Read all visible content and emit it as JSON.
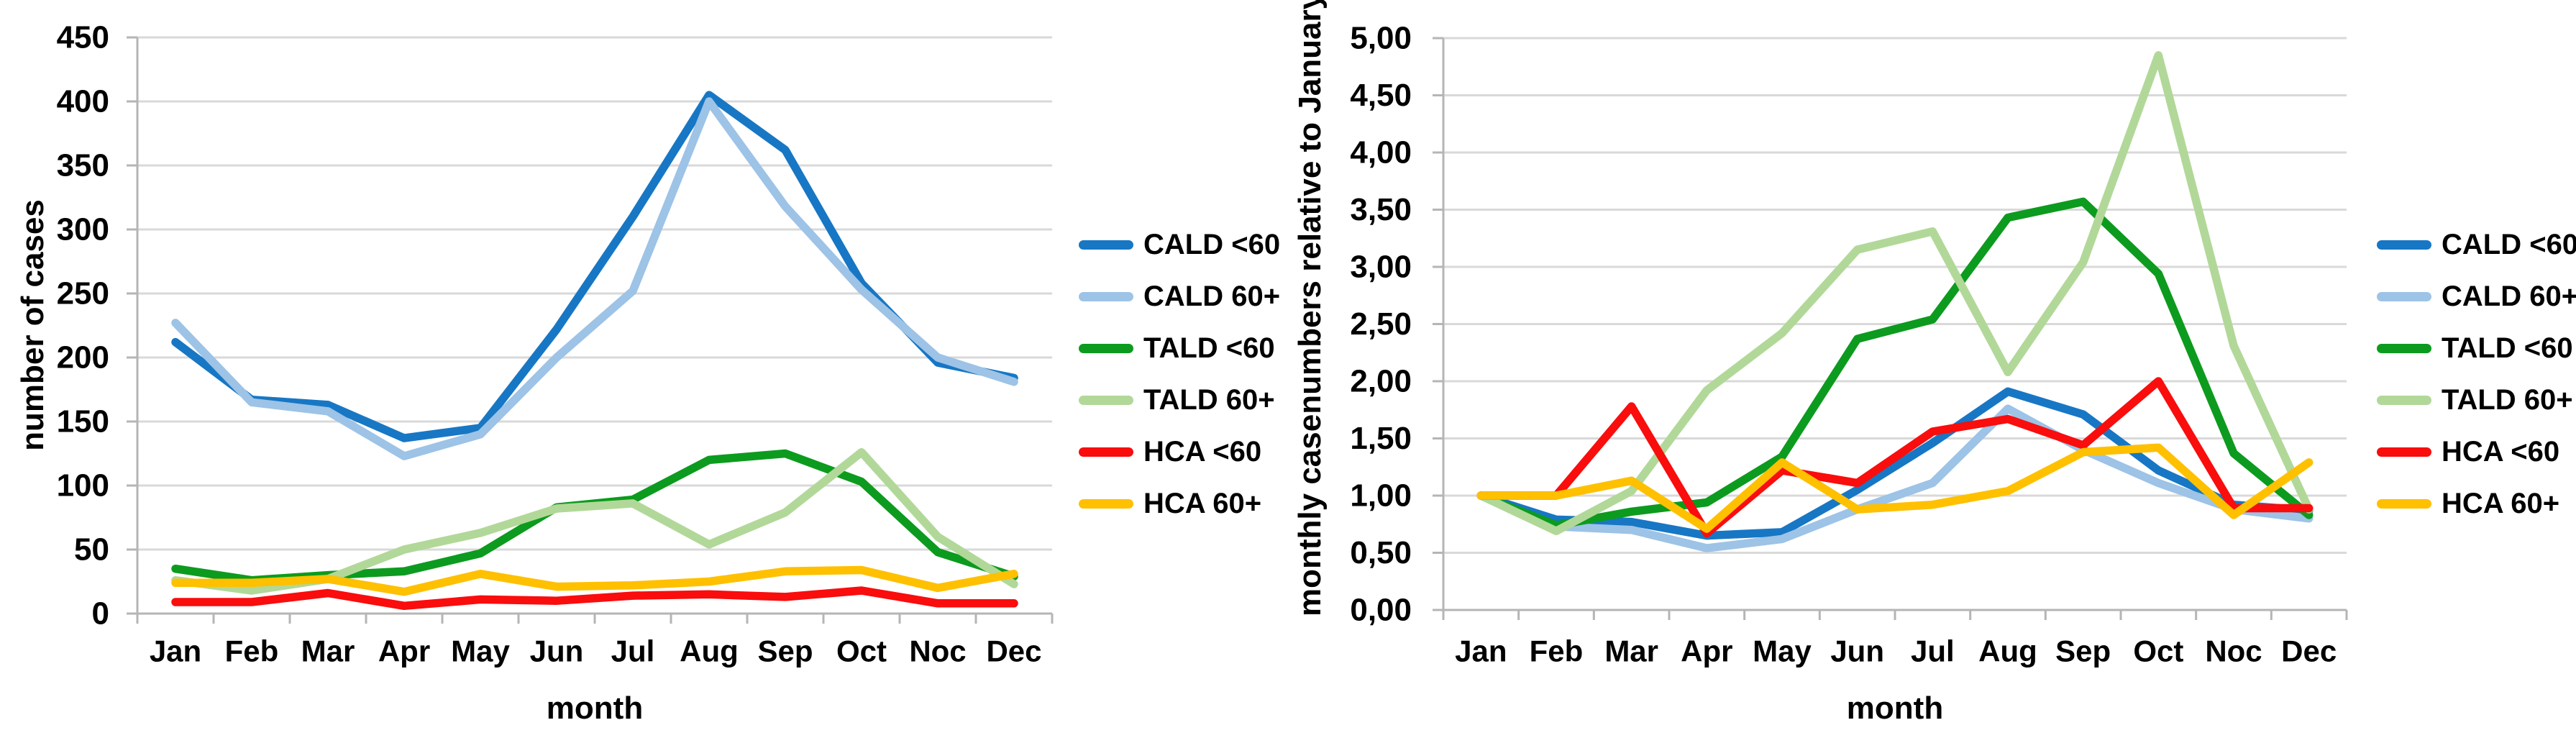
{
  "figure": {
    "background": "#FFFFFF",
    "grid_color": "#D9D9D9",
    "axis_color": "#B5B5B5",
    "text_color": "#000000"
  },
  "chart_data": [
    {
      "type": "line",
      "title": "",
      "xlabel": "month",
      "ylabel": "number of cases",
      "ylim": [
        0,
        450
      ],
      "ytick_step": 50,
      "ytick_labels": [
        "0",
        "50",
        "100",
        "150",
        "200",
        "250",
        "300",
        "350",
        "400",
        "450"
      ],
      "categories": [
        "Jan",
        "Feb",
        "Mar",
        "Apr",
        "May",
        "Jun",
        "Jul",
        "Aug",
        "Sep",
        "Oct",
        "Noc",
        "Dec"
      ],
      "grid": true,
      "legend_position": "right",
      "series": [
        {
          "name": "CALD <60",
          "color": "#1777C4",
          "values": [
            212,
            167,
            163,
            137,
            145,
            222,
            310,
            405,
            362,
            258,
            196,
            184
          ]
        },
        {
          "name": "CALD 60+",
          "color": "#9DC3E6",
          "values": [
            227,
            165,
            158,
            123,
            140,
            200,
            252,
            400,
            318,
            253,
            200,
            181
          ]
        },
        {
          "name": "TALD <60",
          "color": "#0C9B1E",
          "values": [
            35,
            26,
            30,
            33,
            47,
            83,
            89,
            120,
            125,
            103,
            48,
            29
          ]
        },
        {
          "name": "TALD 60+",
          "color": "#B1D898",
          "values": [
            26,
            18,
            27,
            50,
            63,
            82,
            86,
            54,
            79,
            126,
            60,
            23
          ]
        },
        {
          "name": "HCA <60",
          "color": "#F90D0D",
          "values": [
            9,
            9,
            16,
            6,
            11,
            10,
            14,
            15,
            13,
            18,
            8,
            8
          ]
        },
        {
          "name": "HCA 60+",
          "color": "#FFC000",
          "values": [
            24,
            24,
            27,
            17,
            31,
            21,
            22,
            25,
            33,
            34,
            20,
            31
          ]
        }
      ]
    },
    {
      "type": "line",
      "title": "",
      "xlabel": "month",
      "ylabel": "monthly casenumbers relative to January",
      "ylim": [
        0,
        5
      ],
      "ytick_step": 0.5,
      "ytick_labels": [
        "0,00",
        "0,50",
        "1,00",
        "1,50",
        "2,00",
        "2,50",
        "3,00",
        "3,50",
        "4,00",
        "4,50",
        "5,00"
      ],
      "categories": [
        "Jan",
        "Feb",
        "Mar",
        "Apr",
        "May",
        "Jun",
        "Jul",
        "Aug",
        "Sep",
        "Oct",
        "Noc",
        "Dec"
      ],
      "grid": true,
      "legend_position": "right",
      "series": [
        {
          "name": "CALD <60",
          "color": "#1777C4",
          "values": [
            1.0,
            0.79,
            0.77,
            0.65,
            0.68,
            1.05,
            1.46,
            1.91,
            1.71,
            1.22,
            0.92,
            0.87
          ]
        },
        {
          "name": "CALD 60+",
          "color": "#9DC3E6",
          "values": [
            1.0,
            0.73,
            0.7,
            0.54,
            0.62,
            0.88,
            1.11,
            1.76,
            1.4,
            1.11,
            0.88,
            0.8
          ]
        },
        {
          "name": "TALD <60",
          "color": "#0C9B1E",
          "values": [
            1.0,
            0.74,
            0.86,
            0.94,
            1.34,
            2.37,
            2.54,
            3.43,
            3.57,
            2.94,
            1.37,
            0.83
          ]
        },
        {
          "name": "TALD 60+",
          "color": "#B1D898",
          "values": [
            1.0,
            0.69,
            1.04,
            1.92,
            2.42,
            3.15,
            3.31,
            2.08,
            3.04,
            4.85,
            2.31,
            0.88
          ]
        },
        {
          "name": "HCA <60",
          "color": "#F90D0D",
          "values": [
            1.0,
            1.0,
            1.78,
            0.67,
            1.22,
            1.11,
            1.56,
            1.67,
            1.44,
            2.0,
            0.89,
            0.89
          ]
        },
        {
          "name": "HCA 60+",
          "color": "#FFC000",
          "values": [
            1.0,
            1.0,
            1.13,
            0.71,
            1.29,
            0.88,
            0.92,
            1.04,
            1.38,
            1.42,
            0.83,
            1.29
          ]
        }
      ]
    }
  ]
}
